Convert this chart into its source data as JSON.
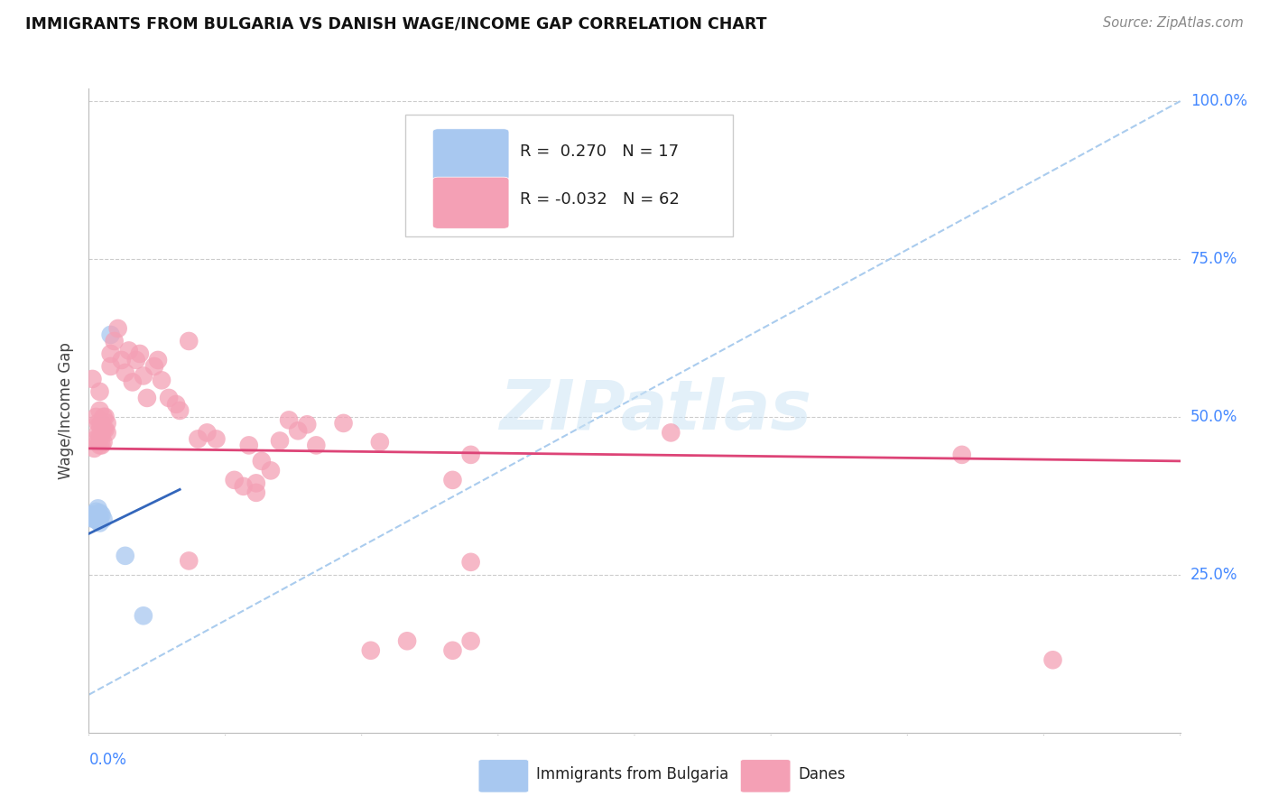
{
  "title": "IMMIGRANTS FROM BULGARIA VS DANISH WAGE/INCOME GAP CORRELATION CHART",
  "source": "Source: ZipAtlas.com",
  "ylabel": "Wage/Income Gap",
  "legend_blue_r": "0.270",
  "legend_blue_n": "17",
  "legend_pink_r": "-0.032",
  "legend_pink_n": "62",
  "watermark": "ZIPatlas",
  "blue_scatter_color": "#a8c8f0",
  "pink_scatter_color": "#f4a0b5",
  "blue_line_color": "#3366bb",
  "pink_line_color": "#dd4477",
  "dashed_line_color": "#aaccee",
  "blue_points": [
    [
      0.001,
      0.34
    ],
    [
      0.002,
      0.345
    ],
    [
      0.003,
      0.342
    ],
    [
      0.003,
      0.338
    ],
    [
      0.004,
      0.35
    ],
    [
      0.004,
      0.345
    ],
    [
      0.004,
      0.338
    ],
    [
      0.005,
      0.355
    ],
    [
      0.005,
      0.34
    ],
    [
      0.005,
      0.335
    ],
    [
      0.006,
      0.348
    ],
    [
      0.006,
      0.34
    ],
    [
      0.006,
      0.332
    ],
    [
      0.007,
      0.345
    ],
    [
      0.008,
      0.338
    ],
    [
      0.02,
      0.28
    ],
    [
      0.03,
      0.185
    ]
  ],
  "blue_extra_points": [
    [
      0.012,
      0.63
    ]
  ],
  "pink_points": [
    [
      0.002,
      0.56
    ],
    [
      0.003,
      0.45
    ],
    [
      0.004,
      0.5
    ],
    [
      0.004,
      0.465
    ],
    [
      0.005,
      0.49
    ],
    [
      0.005,
      0.475
    ],
    [
      0.005,
      0.46
    ],
    [
      0.006,
      0.54
    ],
    [
      0.006,
      0.51
    ],
    [
      0.006,
      0.488
    ],
    [
      0.006,
      0.47
    ],
    [
      0.006,
      0.455
    ],
    [
      0.007,
      0.49
    ],
    [
      0.007,
      0.47
    ],
    [
      0.007,
      0.455
    ],
    [
      0.008,
      0.5
    ],
    [
      0.008,
      0.48
    ],
    [
      0.008,
      0.46
    ],
    [
      0.009,
      0.5
    ],
    [
      0.009,
      0.48
    ],
    [
      0.01,
      0.49
    ],
    [
      0.01,
      0.475
    ],
    [
      0.012,
      0.6
    ],
    [
      0.012,
      0.58
    ],
    [
      0.014,
      0.62
    ],
    [
      0.016,
      0.64
    ],
    [
      0.018,
      0.59
    ],
    [
      0.02,
      0.57
    ],
    [
      0.022,
      0.605
    ],
    [
      0.024,
      0.555
    ],
    [
      0.026,
      0.59
    ],
    [
      0.028,
      0.6
    ],
    [
      0.03,
      0.565
    ],
    [
      0.032,
      0.53
    ],
    [
      0.036,
      0.58
    ],
    [
      0.038,
      0.59
    ],
    [
      0.04,
      0.558
    ],
    [
      0.044,
      0.53
    ],
    [
      0.048,
      0.52
    ],
    [
      0.05,
      0.51
    ],
    [
      0.055,
      0.62
    ],
    [
      0.06,
      0.465
    ],
    [
      0.065,
      0.475
    ],
    [
      0.07,
      0.465
    ],
    [
      0.08,
      0.4
    ],
    [
      0.085,
      0.39
    ],
    [
      0.088,
      0.455
    ],
    [
      0.092,
      0.395
    ],
    [
      0.092,
      0.38
    ],
    [
      0.095,
      0.43
    ],
    [
      0.1,
      0.415
    ],
    [
      0.105,
      0.462
    ],
    [
      0.11,
      0.495
    ],
    [
      0.115,
      0.478
    ],
    [
      0.12,
      0.488
    ],
    [
      0.125,
      0.455
    ],
    [
      0.14,
      0.49
    ],
    [
      0.16,
      0.46
    ],
    [
      0.2,
      0.4
    ],
    [
      0.21,
      0.44
    ],
    [
      0.32,
      0.475
    ],
    [
      0.48,
      0.44
    ]
  ],
  "pink_extra_points": [
    [
      0.055,
      0.272
    ],
    [
      0.21,
      0.27
    ],
    [
      0.155,
      0.13
    ],
    [
      0.175,
      0.145
    ],
    [
      0.2,
      0.13
    ],
    [
      0.21,
      0.145
    ],
    [
      0.53,
      0.115
    ]
  ],
  "blue_line_x": [
    0.0,
    0.05
  ],
  "blue_line_y": [
    0.315,
    0.385
  ],
  "pink_line_x": [
    0.0,
    0.6
  ],
  "pink_line_y": [
    0.45,
    0.43
  ],
  "dash_line_x": [
    0.0,
    0.6
  ],
  "dash_line_y": [
    0.06,
    1.0
  ],
  "xlim": [
    0.0,
    0.6
  ],
  "ylim": [
    0.0,
    1.02
  ],
  "yticks": [
    0.25,
    0.5,
    0.75,
    1.0
  ],
  "ytick_labels": [
    "25.0%",
    "50.0%",
    "75.0%",
    "100.0%"
  ]
}
